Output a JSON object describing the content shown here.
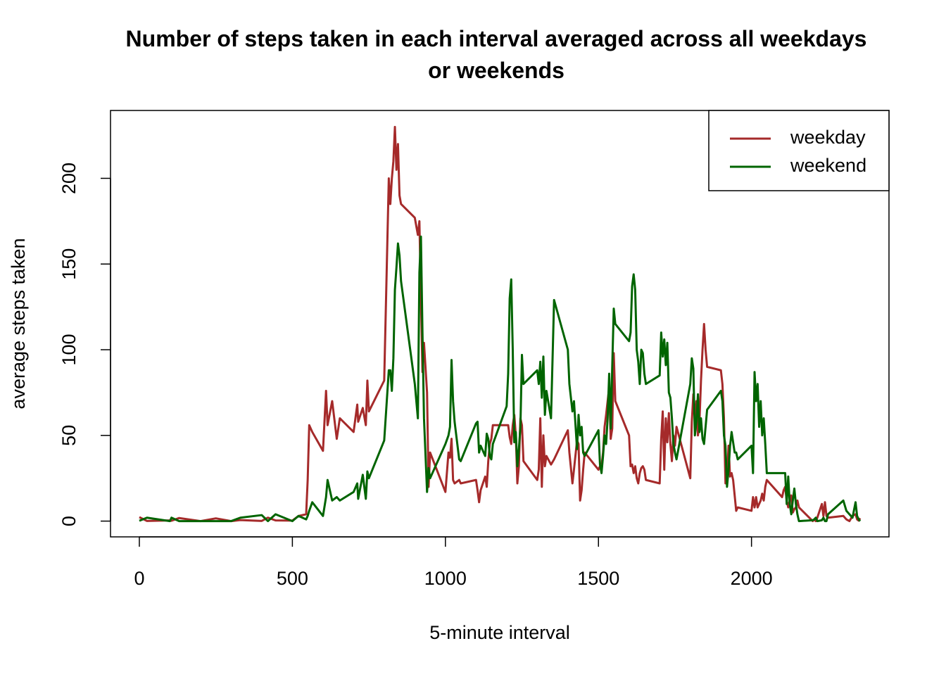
{
  "chart_data": {
    "type": "line",
    "title": "Number of steps taken in each interval averaged across all weekdays or weekends",
    "x_label": "5-minute interval",
    "y_label": "average steps taken",
    "x": [
      0,
      25,
      100,
      105,
      130,
      200,
      250,
      300,
      330,
      400,
      420,
      445,
      500,
      520,
      545,
      550,
      555,
      565,
      600,
      610,
      615,
      630,
      645,
      655,
      700,
      712,
      715,
      730,
      740,
      745,
      750,
      800,
      815,
      820,
      825,
      830,
      835,
      840,
      845,
      850,
      855,
      900,
      910,
      915,
      920,
      925,
      930,
      940,
      945,
      950,
      1000,
      1010,
      1015,
      1020,
      1025,
      1030,
      1045,
      1050,
      1100,
      1105,
      1110,
      1115,
      1130,
      1135,
      1140,
      1145,
      1150,
      1155,
      1200,
      1205,
      1210,
      1215,
      1220,
      1225,
      1230,
      1235,
      1240,
      1245,
      1250,
      1255,
      1300,
      1305,
      1310,
      1315,
      1320,
      1325,
      1330,
      1345,
      1355,
      1400,
      1405,
      1415,
      1420,
      1430,
      1435,
      1440,
      1445,
      1450,
      1455,
      1500,
      1505,
      1510,
      1515,
      1520,
      1525,
      1530,
      1535,
      1540,
      1545,
      1550,
      1555,
      1600,
      1605,
      1610,
      1615,
      1620,
      1625,
      1630,
      1635,
      1640,
      1645,
      1650,
      1655,
      1700,
      1705,
      1710,
      1715,
      1720,
      1725,
      1730,
      1735,
      1740,
      1745,
      1750,
      1755,
      1800,
      1805,
      1810,
      1815,
      1820,
      1825,
      1830,
      1835,
      1840,
      1845,
      1850,
      1855,
      1900,
      1905,
      1910,
      1915,
      1920,
      1925,
      1930,
      1935,
      1940,
      1945,
      1950,
      1955,
      2000,
      2005,
      2010,
      2015,
      2020,
      2025,
      2030,
      2035,
      2040,
      2045,
      2050,
      2100,
      2105,
      2110,
      2115,
      2120,
      2125,
      2130,
      2135,
      2140,
      2145,
      2150,
      2155,
      2200,
      2205,
      2210,
      2215,
      2230,
      2235,
      2240,
      2245,
      2250,
      2300,
      2310,
      2320,
      2330,
      2340,
      2345,
      2350,
      2355
    ],
    "series": [
      {
        "name": "weekday",
        "color": "#a52a2a",
        "values": [
          2.3,
          0.1,
          0.4,
          0.2,
          1.8,
          0,
          1.6,
          0,
          0.6,
          0.1,
          2,
          0.4,
          0.3,
          3,
          4,
          24,
          56,
          52,
          41,
          76,
          56,
          70,
          48,
          60,
          52,
          68,
          58,
          66,
          56,
          82,
          64,
          82,
          200,
          185,
          200,
          210,
          230,
          205,
          220,
          190,
          185,
          177,
          167,
          175,
          130,
          87,
          104,
          75,
          20,
          40,
          17,
          40,
          37,
          48,
          24,
          22,
          24,
          22,
          24,
          18,
          11,
          18,
          26,
          20,
          35,
          45,
          48,
          56,
          56,
          56,
          49,
          45,
          56,
          62,
          50,
          22,
          32,
          60,
          56,
          35,
          24,
          30,
          60,
          20,
          50,
          32,
          38,
          33,
          36,
          53,
          40,
          22,
          30,
          47,
          45,
          12,
          18,
          30,
          40,
          30,
          32,
          32,
          40,
          55,
          62,
          70,
          78,
          48,
          54,
          98,
          70,
          50,
          32,
          33,
          28,
          32,
          25,
          22,
          28,
          31,
          32,
          30,
          24,
          22,
          48,
          64,
          30,
          60,
          46,
          63,
          45,
          35,
          50,
          44,
          55,
          25,
          58,
          74,
          60,
          70,
          50,
          58,
          82,
          100,
          115,
          100,
          90,
          88,
          80,
          60,
          22,
          24,
          44,
          26,
          28,
          24,
          15,
          6,
          8,
          6,
          14,
          8,
          14,
          8,
          10,
          12,
          16,
          12,
          20,
          24,
          14,
          18,
          20,
          12,
          8,
          12,
          15,
          5,
          7,
          8,
          12,
          8,
          0,
          1,
          0,
          2,
          10,
          3,
          11,
          3,
          2,
          3,
          1,
          0,
          3,
          4,
          1,
          0.3,
          1.7
        ]
      },
      {
        "name": "weekend",
        "color": "#006400",
        "values": [
          0.2,
          2,
          0,
          2,
          0,
          0,
          0,
          0,
          2,
          3.5,
          0,
          4,
          0,
          3,
          1,
          3,
          6,
          11,
          3,
          14,
          24,
          12,
          14,
          12,
          17,
          22,
          13,
          27,
          13,
          29,
          25,
          47,
          88,
          88,
          76,
          95,
          135,
          148,
          162,
          155,
          140,
          80,
          60,
          145,
          166,
          110,
          60,
          17,
          31,
          25,
          45,
          50,
          55,
          94,
          70,
          58,
          36,
          35,
          57,
          58,
          40,
          44,
          38,
          51,
          48,
          38,
          36,
          45,
          67,
          86,
          130,
          141,
          100,
          46,
          52,
          32,
          42,
          55,
          97,
          80,
          88,
          80,
          93,
          72,
          96,
          62,
          76,
          60,
          129,
          100,
          80,
          64,
          70,
          42,
          62,
          50,
          55,
          40,
          38,
          53,
          33,
          28,
          38,
          50,
          45,
          60,
          86,
          54,
          90,
          124,
          115,
          105,
          110,
          137,
          144,
          135,
          100,
          93,
          80,
          100,
          98,
          86,
          80,
          85,
          110,
          96,
          106,
          91,
          104,
          75,
          72,
          60,
          45,
          40,
          36,
          80,
          95,
          89,
          50,
          58,
          74,
          52,
          60,
          48,
          45,
          55,
          65,
          76,
          70,
          50,
          44,
          20,
          30,
          44,
          52,
          46,
          40,
          40,
          36,
          44,
          28,
          87,
          70,
          80,
          55,
          70,
          50,
          60,
          45,
          28,
          28,
          28,
          28,
          10,
          26,
          10,
          4,
          12,
          19,
          10,
          4,
          0,
          0.5,
          1,
          2,
          0,
          0.5,
          2,
          0,
          0,
          4,
          12,
          6,
          4,
          2,
          11,
          3,
          1,
          0
        ]
      }
    ],
    "xlim": [
      -94.2,
      2449.2
    ],
    "ylim": [
      -9.2,
      239.6
    ],
    "xticks": [
      0,
      500,
      1000,
      1500,
      2000
    ],
    "yticks": [
      0,
      50,
      100,
      150,
      200
    ],
    "legend": "topright"
  }
}
